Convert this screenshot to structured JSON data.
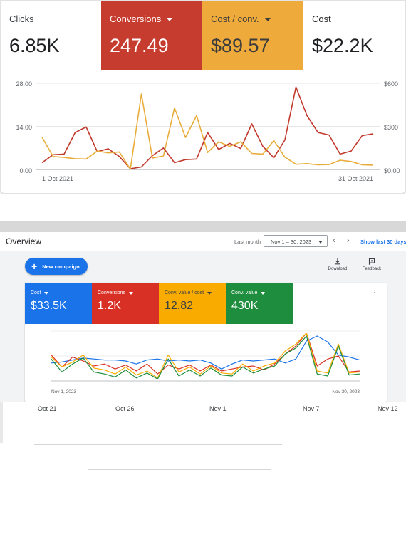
{
  "top_metrics": {
    "clicks": {
      "label": "Clicks",
      "value": "6.85K"
    },
    "conversions": {
      "label": "Conversions",
      "value": "247.49",
      "color": "#c63c2f"
    },
    "cost_per_conv": {
      "label": "Cost / conv.",
      "value": "$89.57",
      "color": "#eeab3c"
    },
    "cost": {
      "label": "Cost",
      "value": "$22.2K"
    }
  },
  "top_chart": {
    "type": "line",
    "left_axis": {
      "ticks": [
        "28.00",
        "14.00",
        "0.00"
      ],
      "range": [
        0,
        28
      ]
    },
    "right_axis": {
      "ticks": [
        "$600",
        "$300",
        "$0.00"
      ],
      "range": [
        0,
        600
      ]
    },
    "x_start_label": "1 Oct 2021",
    "x_end_label": "31 Oct 2021",
    "series": [
      {
        "axis": "left",
        "color": "#c0392b",
        "values": [
          2.2,
          4.8,
          5.0,
          12.0,
          13.8,
          5.8,
          6.7,
          4.2,
          0.2,
          0.8,
          4.5,
          7.0,
          2.2,
          3.2,
          3.4,
          12.0,
          6.5,
          8.5,
          6.8,
          14.8,
          7.5,
          3.8,
          9.6,
          26.8,
          17.5,
          12.0,
          11.2,
          5.0,
          6.0,
          11.0,
          11.6
        ]
      },
      {
        "axis": "left",
        "color": "#e8ac3a",
        "values": [
          10.5,
          4.2,
          3.9,
          3.5,
          3.4,
          6.0,
          5.4,
          5.7,
          0.1,
          24.5,
          3.7,
          4.4,
          20.0,
          10.4,
          17.5,
          5.5,
          9.0,
          7.5,
          9.0,
          5.2,
          5.0,
          9.4,
          4.0,
          1.7,
          1.9,
          1.5,
          1.6,
          3.0,
          2.6,
          1.5,
          1.4
        ]
      }
    ]
  },
  "overview": {
    "title": "Overview",
    "last_month_label": "Last month",
    "date_range": "Nov 1 – 30, 2023",
    "prev_icon": "‹",
    "next_icon": "›",
    "show_last": "Show last 30 days",
    "new_campaign": "New campaign",
    "download": "Download",
    "feedback": "Feedback",
    "metrics": {
      "cost": {
        "label": "Cost",
        "value": "$33.5K",
        "color": "#1a73e8"
      },
      "conversions": {
        "label": "Conversions",
        "value": "1.2K",
        "color": "#d93025"
      },
      "conv_value_cost": {
        "label": "Conv. value / cost",
        "value": "12.82",
        "color": "#f9ab00"
      },
      "conv_value": {
        "label": "Conv. value",
        "value": "430K",
        "color": "#1e8e3e"
      }
    },
    "more_icon": "more-vert-icon",
    "chart": {
      "type": "line",
      "x_start_label": "Nov 1, 2023",
      "x_end_label": "Nov 30, 2023",
      "series": [
        {
          "color": "#1a73e8",
          "values": [
            0.36,
            0.38,
            0.42,
            0.46,
            0.44,
            0.42,
            0.42,
            0.4,
            0.34,
            0.42,
            0.44,
            0.4,
            0.42,
            0.4,
            0.42,
            0.36,
            0.24,
            0.34,
            0.42,
            0.4,
            0.42,
            0.44,
            0.36,
            0.44,
            0.8,
            0.9,
            0.78,
            0.52,
            0.48,
            0.42
          ]
        },
        {
          "color": "#d93025",
          "values": [
            0.52,
            0.28,
            0.48,
            0.4,
            0.3,
            0.34,
            0.24,
            0.32,
            0.2,
            0.34,
            0.14,
            0.32,
            0.24,
            0.32,
            0.2,
            0.32,
            0.2,
            0.24,
            0.28,
            0.3,
            0.22,
            0.34,
            0.54,
            0.7,
            0.96,
            0.3,
            0.44,
            0.5,
            0.18,
            0.2
          ]
        },
        {
          "color": "#f9ab00",
          "values": [
            0.48,
            0.28,
            0.38,
            0.52,
            0.26,
            0.22,
            0.14,
            0.28,
            0.12,
            0.2,
            0.06,
            0.52,
            0.18,
            0.28,
            0.14,
            0.3,
            0.16,
            0.14,
            0.34,
            0.2,
            0.3,
            0.36,
            0.6,
            0.74,
            0.96,
            0.2,
            0.16,
            0.74,
            0.16,
            0.18
          ]
        },
        {
          "color": "#1e8e3e",
          "values": [
            0.44,
            0.18,
            0.34,
            0.46,
            0.18,
            0.14,
            0.08,
            0.22,
            0.06,
            0.16,
            0.04,
            0.44,
            0.1,
            0.22,
            0.1,
            0.26,
            0.12,
            0.1,
            0.28,
            0.16,
            0.24,
            0.3,
            0.54,
            0.66,
            0.9,
            0.14,
            0.1,
            0.7,
            0.12,
            0.14
          ]
        }
      ]
    }
  },
  "bottom_axis": {
    "labels": [
      "Oct 21",
      "Oct 26",
      "Nov 1",
      "Nov 7",
      "Nov 12"
    ]
  }
}
